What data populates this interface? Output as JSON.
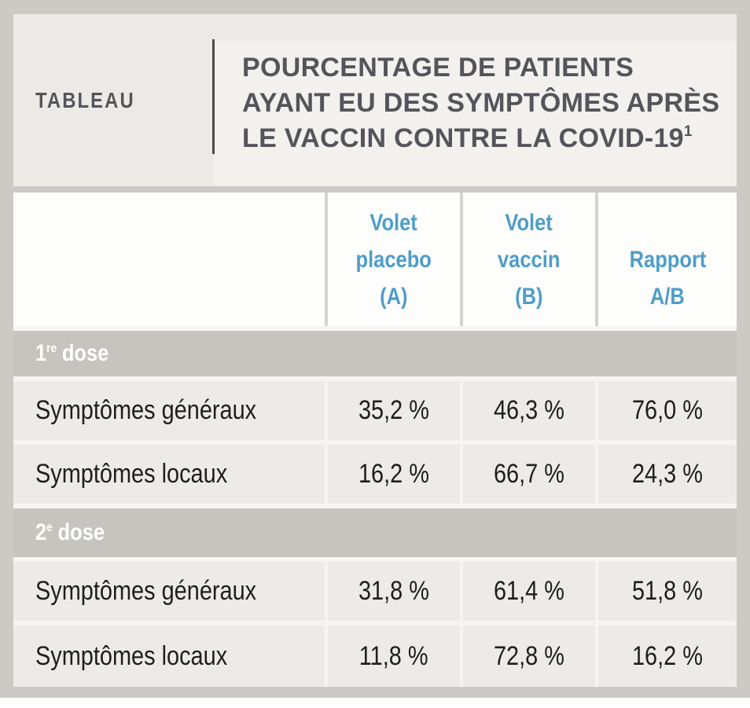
{
  "figure": {
    "kicker": "TABLEAU",
    "title_line1": "POURCENTAGE DE PATIENTS",
    "title_line2": "AYANT EU DES SYMPTÔMES APRÈS",
    "title_line3": "LE VACCIN CONTRE LA COVID-19",
    "title_footnote_marker": "1"
  },
  "table": {
    "header": {
      "col_a": {
        "line1": "Volet",
        "line2": "placebo",
        "line3": "(A)"
      },
      "col_b": {
        "line1": "Volet",
        "line2": "vaccin",
        "line3": "(B)"
      },
      "col_ratio": {
        "line1": "Rapport",
        "line2": "A/B"
      }
    },
    "sections": [
      {
        "label_num": "1",
        "label_sup": "re",
        "label_text": "dose",
        "rows": [
          {
            "label": "Symptômes généraux",
            "a": "35,2 %",
            "b": "46,3 %",
            "ratio": "76,0 %"
          },
          {
            "label": "Symptômes locaux",
            "a": "16,2 %",
            "b": "66,7 %",
            "ratio": "24,3 %"
          }
        ]
      },
      {
        "label_num": "2",
        "label_sup": "e",
        "label_text": "dose",
        "rows": [
          {
            "label": "Symptômes généraux",
            "a": "31,8 %",
            "b": "61,4 %",
            "ratio": "51,8 %"
          },
          {
            "label": "Symptômes locaux",
            "a": "11,8 %",
            "b": "72,8 %",
            "ratio": "16,2 %"
          }
        ]
      }
    ]
  },
  "colors": {
    "accent_blue": "#4f9dc8",
    "frame_gray": "#cdcac6",
    "section_band_gray": "#c7c4bf",
    "data_cell_gray": "#edebe8",
    "header_cell_white": "#fdfdfc",
    "title_panel": "#ebeae7",
    "title_highlight": "#f2f1ee",
    "dark_text": "#1f1e1c",
    "heading_gray": "#54555a"
  },
  "chart_data": {
    "type": "table",
    "title": "Pourcentage de patients ayant eu des symptômes après le vaccin contre la COVID-19",
    "footnote_marker": "1",
    "columns": [
      "Volet placebo (A)",
      "Volet vaccin (B)",
      "Rapport A/B"
    ],
    "unit": "%",
    "sections": [
      {
        "name": "1re dose",
        "rows": [
          {
            "label": "Symptômes généraux",
            "values": [
              35.2,
              46.3,
              76.0
            ]
          },
          {
            "label": "Symptômes locaux",
            "values": [
              16.2,
              66.7,
              24.3
            ]
          }
        ]
      },
      {
        "name": "2e dose",
        "rows": [
          {
            "label": "Symptômes généraux",
            "values": [
              31.8,
              61.4,
              51.8
            ]
          },
          {
            "label": "Symptômes locaux",
            "values": [
              11.8,
              72.8,
              16.2
            ]
          }
        ]
      }
    ]
  }
}
